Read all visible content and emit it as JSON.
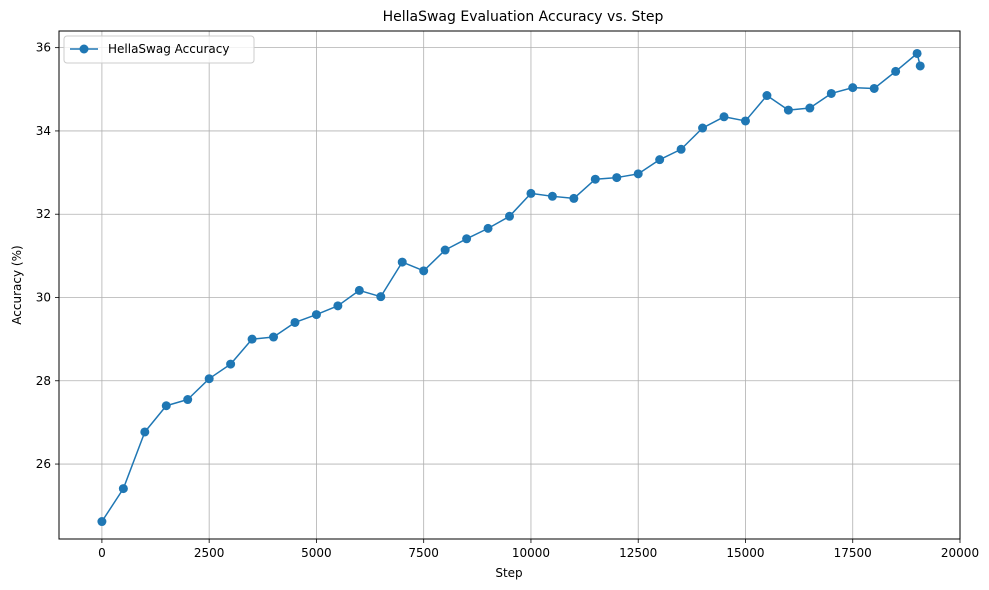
{
  "chart_data": {
    "type": "line",
    "title": "HellaSwag Evaluation Accuracy vs. Step",
    "xlabel": "Step",
    "ylabel": "Accuracy (%)",
    "xlim": [
      -1000,
      20000
    ],
    "ylim": [
      24.2,
      36.4
    ],
    "x_ticks": [
      0,
      2500,
      5000,
      7500,
      10000,
      12500,
      15000,
      17500,
      20000
    ],
    "y_ticks": [
      26,
      28,
      30,
      32,
      34,
      36
    ],
    "x_tick_labels": [
      "0",
      "2500",
      "5000",
      "7500",
      "10000",
      "12500",
      "15000",
      "17500",
      "20000"
    ],
    "y_tick_labels": [
      "26",
      "28",
      "30",
      "32",
      "34",
      "36"
    ],
    "grid": true,
    "legend_position": "top-left",
    "series": [
      {
        "name": "HellaSwag Accuracy",
        "color": "#1f77b4",
        "marker": "circle",
        "x": [
          0,
          500,
          1000,
          1500,
          2000,
          2500,
          3000,
          3500,
          4000,
          4500,
          5000,
          5500,
          6000,
          6500,
          7000,
          7500,
          8000,
          8500,
          9000,
          9500,
          10000,
          10500,
          11000,
          11500,
          12000,
          12500,
          13000,
          13500,
          14000,
          14500,
          15000,
          15500,
          16000,
          16500,
          17000,
          17500,
          18000,
          18500,
          19000,
          19073
        ],
        "y": [
          24.62,
          25.41,
          26.77,
          27.4,
          27.55,
          28.05,
          28.4,
          29.0,
          29.05,
          29.4,
          29.59,
          29.8,
          30.17,
          30.02,
          30.85,
          30.64,
          31.14,
          31.41,
          31.66,
          31.95,
          32.5,
          32.43,
          32.38,
          32.84,
          32.88,
          32.97,
          33.31,
          33.56,
          34.07,
          34.34,
          34.24,
          34.85,
          34.5,
          34.55,
          34.9,
          35.04,
          35.02,
          35.43,
          35.86,
          35.56
        ]
      }
    ]
  }
}
